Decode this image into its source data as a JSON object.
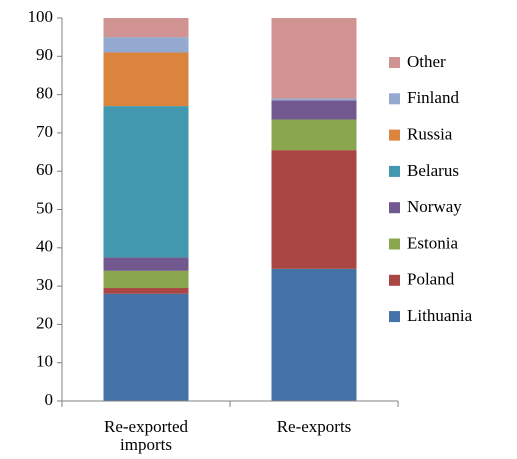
{
  "chart_data": {
    "type": "stacked_bar",
    "categories": [
      "Re-exported imports",
      "Re-exports"
    ],
    "series": [
      {
        "name": "Lithuania",
        "color": "#4572a7",
        "values": [
          28,
          34.5
        ]
      },
      {
        "name": "Poland",
        "color": "#aa4643",
        "values": [
          1.5,
          31
        ]
      },
      {
        "name": "Estonia",
        "color": "#89a54e",
        "values": [
          4.5,
          8
        ]
      },
      {
        "name": "Norway",
        "color": "#71588f",
        "values": [
          3.5,
          5
        ]
      },
      {
        "name": "Belarus",
        "color": "#4198af",
        "values": [
          39.5,
          0
        ]
      },
      {
        "name": "Russia",
        "color": "#db843d",
        "values": [
          14,
          0
        ]
      },
      {
        "name": "Finland",
        "color": "#93a9cf",
        "values": [
          4,
          0.5
        ]
      },
      {
        "name": "Other",
        "color": "#d19392",
        "values": [
          5,
          21
        ]
      }
    ],
    "ylim": [
      0,
      100
    ],
    "yticks": [
      0,
      10,
      20,
      30,
      40,
      50,
      60,
      70,
      80,
      90,
      100
    ],
    "legend": "right"
  }
}
